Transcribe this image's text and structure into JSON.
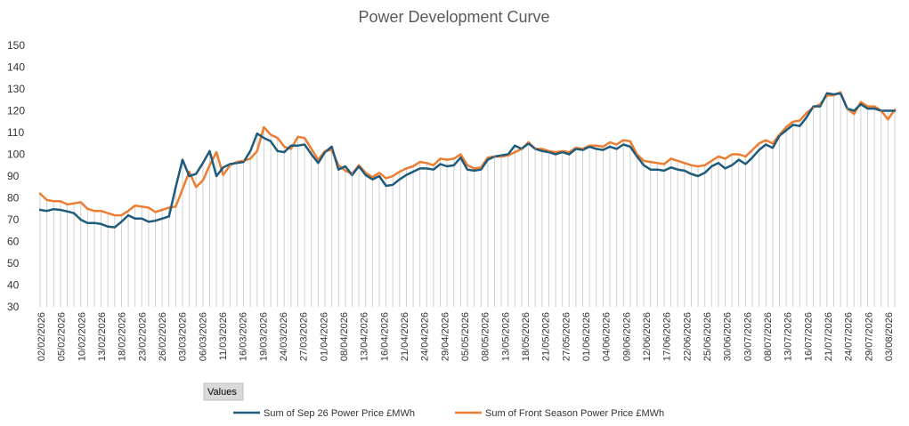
{
  "chart_data": {
    "type": "line",
    "title": "Power Development Curve",
    "xlabel": "",
    "ylabel": "",
    "ylim": [
      30,
      150
    ],
    "yticks": [
      30,
      40,
      50,
      60,
      70,
      80,
      90,
      100,
      110,
      120,
      130,
      140,
      150
    ],
    "field_button": "Values",
    "legend_position": "bottom",
    "grid": "vertical drop lines",
    "x_tick_labels": [
      "02/02/2026",
      "05/02/2026",
      "10/02/2026",
      "13/02/2026",
      "18/02/2026",
      "23/02/2026",
      "26/02/2026",
      "03/03/2026",
      "06/03/2026",
      "11/03/2026",
      "16/03/2026",
      "19/03/2026",
      "24/03/2026",
      "27/03/2026",
      "01/04/2026",
      "08/04/2026",
      "13/04/2026",
      "16/04/2026",
      "21/04/2026",
      "24/04/2026",
      "29/04/2026",
      "05/05/2026",
      "08/05/2026",
      "13/05/2026",
      "18/05/2026",
      "21/05/2026",
      "27/05/2026",
      "01/06/2026",
      "04/06/2026",
      "09/06/2026",
      "12/06/2026",
      "17/06/2026",
      "22/06/2026",
      "25/06/2026",
      "30/06/2026",
      "03/07/2026",
      "08/07/2026",
      "13/07/2026",
      "16/07/2026",
      "21/07/2026",
      "24/07/2026",
      "29/07/2026",
      "03/08/2026"
    ],
    "series": [
      {
        "name": "Sum of Sep 26 Power Price £MWh",
        "color": "#1f5b7a",
        "values": [
          74.5,
          74,
          74.8,
          74.5,
          73.8,
          73,
          70,
          68.5,
          68.5,
          68,
          66.8,
          66.5,
          69,
          72,
          70.5,
          70.5,
          69,
          69.5,
          70.5,
          71.5,
          85,
          97.5,
          90,
          91,
          96,
          101.5,
          90,
          94,
          95.5,
          96,
          96.5,
          101.5,
          109.5,
          107.5,
          106,
          101.5,
          101,
          104,
          104,
          104.5,
          100,
          96,
          101,
          103.5,
          93,
          94.5,
          90.5,
          94.5,
          90.5,
          88.5,
          90,
          85.5,
          86,
          88.5,
          90.5,
          92,
          93.5,
          93.5,
          93,
          95.5,
          94.5,
          95,
          98.5,
          93,
          92.5,
          93,
          97.5,
          99,
          99.5,
          100,
          104,
          102.5,
          105,
          102.5,
          101.5,
          101,
          100,
          101,
          100,
          102.5,
          102,
          103.5,
          102.5,
          102,
          103.5,
          102.5,
          104.5,
          103.5,
          99,
          95,
          93,
          93,
          92.5,
          94,
          93,
          92.5,
          91,
          90,
          91.5,
          94.5,
          96,
          93.5,
          95,
          97.5,
          95.5,
          98.5,
          102,
          104.5,
          103,
          108.5,
          111,
          113.5,
          113,
          117,
          122,
          122,
          128,
          127.5,
          128,
          121,
          120,
          123,
          121,
          121,
          120,
          120,
          120
        ]
      },
      {
        "name": "Sum of Front Season Power Price £MWh",
        "color": "#ed7d31",
        "values": [
          82,
          79,
          78.5,
          78.5,
          77,
          77.5,
          78,
          75,
          74,
          74,
          73,
          72,
          72,
          74,
          76.5,
          76,
          75.5,
          73.5,
          74.5,
          75.5,
          76,
          84,
          92,
          85,
          88,
          95,
          101,
          90.5,
          95,
          96.5,
          97,
          98,
          101.5,
          112.5,
          109,
          107.5,
          103.5,
          102.5,
          108,
          107.5,
          102.5,
          97.5,
          101.5,
          102,
          95,
          92.5,
          91,
          95,
          91.5,
          89.5,
          91.5,
          89,
          90,
          92,
          93.5,
          94.5,
          96.5,
          96,
          95,
          98,
          97.5,
          98,
          100,
          95,
          93.5,
          94,
          98.5,
          99,
          99,
          99.5,
          101,
          102.5,
          105.5,
          102.5,
          102.5,
          101.5,
          101,
          101.5,
          101,
          103,
          102.5,
          104,
          104,
          103.5,
          105.5,
          104.5,
          106.5,
          106,
          100,
          97,
          96.5,
          96,
          95.5,
          98,
          97,
          96,
          95,
          94.5,
          95,
          97,
          99,
          98,
          100,
          100,
          99,
          102,
          105,
          106.5,
          105,
          109,
          112.5,
          115,
          115.5,
          119,
          121.5,
          123,
          127,
          127,
          128.5,
          121,
          118.5,
          124,
          122,
          122,
          120,
          116,
          120.5
        ]
      }
    ]
  }
}
